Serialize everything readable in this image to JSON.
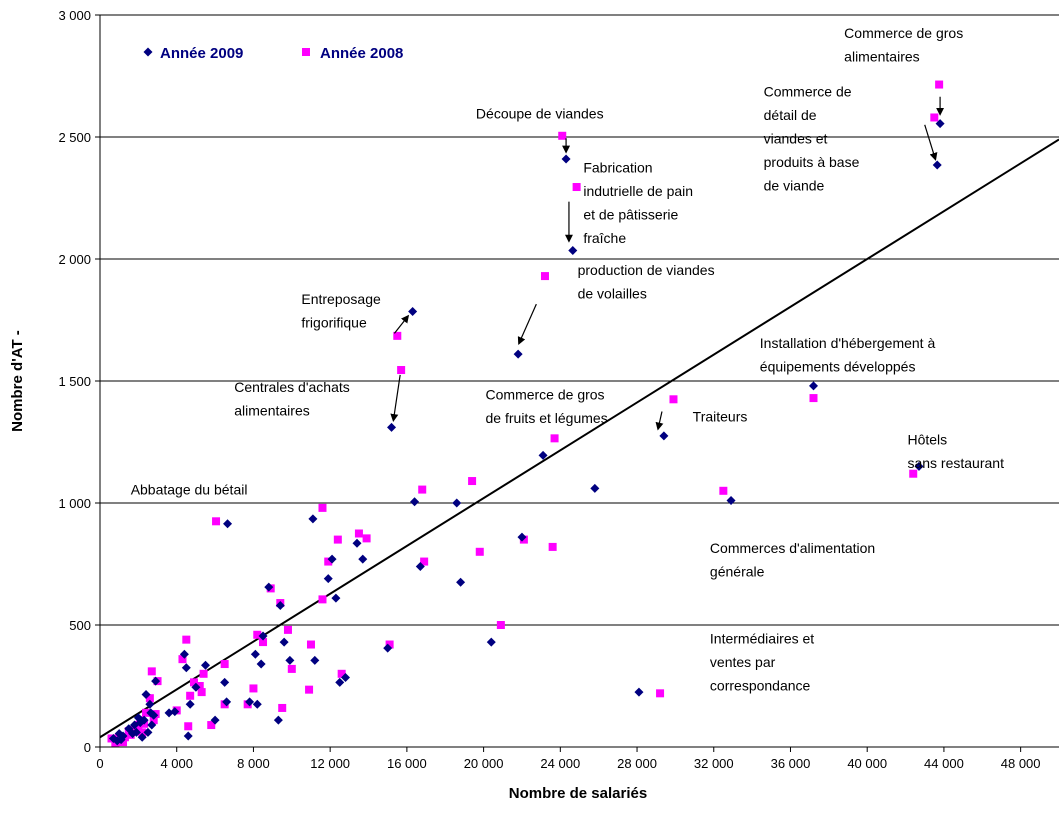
{
  "chart_data": {
    "type": "scatter",
    "title": "",
    "xlabel": "Nombre de salariés",
    "ylabel": "Nombre d'AT -",
    "xlim": [
      0,
      50000
    ],
    "ylim": [
      0,
      3000
    ],
    "x_ticks": [
      0,
      4000,
      8000,
      12000,
      16000,
      20000,
      24000,
      28000,
      32000,
      36000,
      40000,
      44000,
      48000
    ],
    "x_tick_labels": [
      "0",
      "4 000",
      "8 000",
      "12 000",
      "16 000",
      "20 000",
      "24 000",
      "28 000",
      "32 000",
      "36 000",
      "40 000",
      "44 000",
      "48 000"
    ],
    "y_ticks": [
      0,
      500,
      1000,
      1500,
      2000,
      2500,
      3000
    ],
    "y_tick_labels": [
      "0",
      "500",
      "1 000",
      "1 500",
      "2 000",
      "2 500",
      "3 000"
    ],
    "grid": "horizontal",
    "legend_position": "top-left",
    "colors": {
      "y2009": "#000080",
      "y2008": "#ff00ff",
      "trend": "#000000"
    },
    "trendline": {
      "x": [
        0,
        50000
      ],
      "y": [
        40,
        2490
      ]
    },
    "series": [
      {
        "name": "Année 2009",
        "marker": "diamond",
        "points": [
          [
            43800,
            2555
          ],
          [
            43650,
            2385
          ],
          [
            24300,
            2410
          ],
          [
            24650,
            2035
          ],
          [
            16300,
            1785
          ],
          [
            21800,
            1610
          ],
          [
            15200,
            1310
          ],
          [
            37200,
            1480
          ],
          [
            29400,
            1275
          ],
          [
            42700,
            1150
          ],
          [
            32900,
            1010
          ],
          [
            25800,
            1060
          ],
          [
            23100,
            1195
          ],
          [
            16400,
            1005
          ],
          [
            18600,
            1000
          ],
          [
            22000,
            860
          ],
          [
            18800,
            675
          ],
          [
            20400,
            430
          ],
          [
            28100,
            225
          ],
          [
            15000,
            405
          ],
          [
            6650,
            915
          ],
          [
            11100,
            935
          ],
          [
            13400,
            835
          ],
          [
            13700,
            770
          ],
          [
            12100,
            770
          ],
          [
            11900,
            690
          ],
          [
            12300,
            610
          ],
          [
            9400,
            580
          ],
          [
            8800,
            655
          ],
          [
            16700,
            740
          ],
          [
            12500,
            265
          ],
          [
            12800,
            285
          ],
          [
            11200,
            355
          ],
          [
            9900,
            355
          ],
          [
            9600,
            430
          ],
          [
            8400,
            340
          ],
          [
            8100,
            380
          ],
          [
            7800,
            185
          ],
          [
            9300,
            110
          ],
          [
            6500,
            265
          ],
          [
            6000,
            110
          ],
          [
            6600,
            185
          ],
          [
            5500,
            335
          ],
          [
            5000,
            245
          ],
          [
            4600,
            45
          ],
          [
            4700,
            175
          ],
          [
            4500,
            325
          ],
          [
            4400,
            380
          ],
          [
            3900,
            145
          ],
          [
            3600,
            140
          ],
          [
            2900,
            270
          ],
          [
            2800,
            130
          ],
          [
            2700,
            90
          ],
          [
            2600,
            175
          ],
          [
            2400,
            215
          ],
          [
            2300,
            110
          ],
          [
            2200,
            40
          ],
          [
            2100,
            100
          ],
          [
            2000,
            120
          ],
          [
            1900,
            60
          ],
          [
            1800,
            90
          ],
          [
            1700,
            55
          ],
          [
            1500,
            75
          ],
          [
            1200,
            45
          ],
          [
            1100,
            30
          ],
          [
            1000,
            55
          ],
          [
            900,
            25
          ],
          [
            700,
            35
          ],
          [
            8500,
            455
          ],
          [
            8200,
            175
          ],
          [
            2500,
            60
          ],
          [
            2650,
            140
          ]
        ]
      },
      {
        "name": "Année 2008",
        "marker": "square",
        "points": [
          [
            43750,
            2715
          ],
          [
            43500,
            2580
          ],
          [
            24100,
            2505
          ],
          [
            24850,
            2295
          ],
          [
            23200,
            1930
          ],
          [
            15500,
            1685
          ],
          [
            15700,
            1545
          ],
          [
            29900,
            1425
          ],
          [
            37200,
            1430
          ],
          [
            42400,
            1120
          ],
          [
            32500,
            1050
          ],
          [
            23700,
            1265
          ],
          [
            19400,
            1090
          ],
          [
            16800,
            1055
          ],
          [
            22100,
            850
          ],
          [
            23600,
            820
          ],
          [
            19800,
            800
          ],
          [
            20900,
            500
          ],
          [
            29200,
            220
          ],
          [
            15100,
            420
          ],
          [
            6050,
            925
          ],
          [
            11600,
            980
          ],
          [
            13500,
            875
          ],
          [
            13900,
            855
          ],
          [
            12400,
            850
          ],
          [
            11900,
            760
          ],
          [
            11600,
            605
          ],
          [
            9400,
            590
          ],
          [
            8900,
            650
          ],
          [
            16900,
            760
          ],
          [
            12600,
            300
          ],
          [
            11000,
            420
          ],
          [
            10900,
            235
          ],
          [
            10000,
            320
          ],
          [
            9800,
            480
          ],
          [
            8200,
            460
          ],
          [
            8000,
            240
          ],
          [
            7700,
            175
          ],
          [
            9500,
            160
          ],
          [
            6500,
            340
          ],
          [
            5800,
            90
          ],
          [
            6500,
            175
          ],
          [
            5400,
            300
          ],
          [
            5200,
            250
          ],
          [
            4600,
            85
          ],
          [
            4700,
            210
          ],
          [
            4500,
            440
          ],
          [
            4300,
            360
          ],
          [
            4000,
            150
          ],
          [
            3000,
            270
          ],
          [
            2900,
            135
          ],
          [
            2800,
            110
          ],
          [
            2700,
            310
          ],
          [
            2600,
            200
          ],
          [
            2400,
            140
          ],
          [
            2200,
            60
          ],
          [
            2100,
            110
          ],
          [
            2000,
            90
          ],
          [
            1800,
            70
          ],
          [
            1600,
            50
          ],
          [
            1500,
            65
          ],
          [
            1300,
            40
          ],
          [
            1200,
            20
          ],
          [
            1000,
            40
          ],
          [
            800,
            15
          ],
          [
            600,
            35
          ],
          [
            4900,
            265
          ],
          [
            5300,
            225
          ],
          [
            2300,
            95
          ],
          [
            8500,
            430
          ]
        ]
      }
    ],
    "annotations": [
      {
        "text": [
          "Commerce de gros",
          "alimentaires"
        ],
        "x": 38800,
        "y": 2905
      },
      {
        "text": [
          "Commerce de",
          "détail de",
          "viandes et",
          "produits à base",
          "de viande"
        ],
        "x": 34600,
        "y": 2665
      },
      {
        "text": [
          "Découpe de viandes"
        ],
        "x": 19600,
        "y": 2575
      },
      {
        "text": [
          "Fabrication",
          "indutrielle de pain",
          "et de pâtisserie",
          "fraîche"
        ],
        "x": 25200,
        "y": 2355
      },
      {
        "text": [
          "production de viandes",
          "de volailles"
        ],
        "x": 24900,
        "y": 1935
      },
      {
        "text": [
          "Entreposage",
          "frigorifique"
        ],
        "x": 10500,
        "y": 1815
      },
      {
        "text": [
          "Installation d'hébergement à",
          "équipements développés"
        ],
        "x": 34400,
        "y": 1635
      },
      {
        "text": [
          "Centrales d'achats",
          "alimentaires"
        ],
        "x": 7000,
        "y": 1455
      },
      {
        "text": [
          "Commerce de gros",
          "de fruits et légumes"
        ],
        "x": 20100,
        "y": 1425
      },
      {
        "text": [
          "Traiteurs"
        ],
        "x": 30900,
        "y": 1335
      },
      {
        "text": [
          "Hôtels",
          "sans restaurant"
        ],
        "x": 42100,
        "y": 1240
      },
      {
        "text": [
          "Abbatage du bétail"
        ],
        "x": 1600,
        "y": 1035
      },
      {
        "text": [
          "Commerces d'alimentation",
          "générale"
        ],
        "x": 31800,
        "y": 795
      },
      {
        "text": [
          "Intermédiaires et",
          "ventes par",
          "correspondance"
        ],
        "x": 31800,
        "y": 425
      }
    ],
    "arrows": [
      {
        "from": [
          43800,
          2665
        ],
        "to": [
          43800,
          2595
        ]
      },
      {
        "from": [
          43000,
          2550
        ],
        "to": [
          43550,
          2410
        ]
      },
      {
        "from": [
          24300,
          2495
        ],
        "to": [
          24300,
          2440
        ]
      },
      {
        "from": [
          24450,
          2235
        ],
        "to": [
          24450,
          2075
        ]
      },
      {
        "from": [
          22750,
          1815
        ],
        "to": [
          21850,
          1655
        ]
      },
      {
        "from": [
          15350,
          1695
        ],
        "to": [
          16050,
          1765
        ]
      },
      {
        "from": [
          15650,
          1525
        ],
        "to": [
          15300,
          1340
        ]
      },
      {
        "from": [
          29300,
          1375
        ],
        "to": [
          29100,
          1305
        ]
      }
    ]
  }
}
